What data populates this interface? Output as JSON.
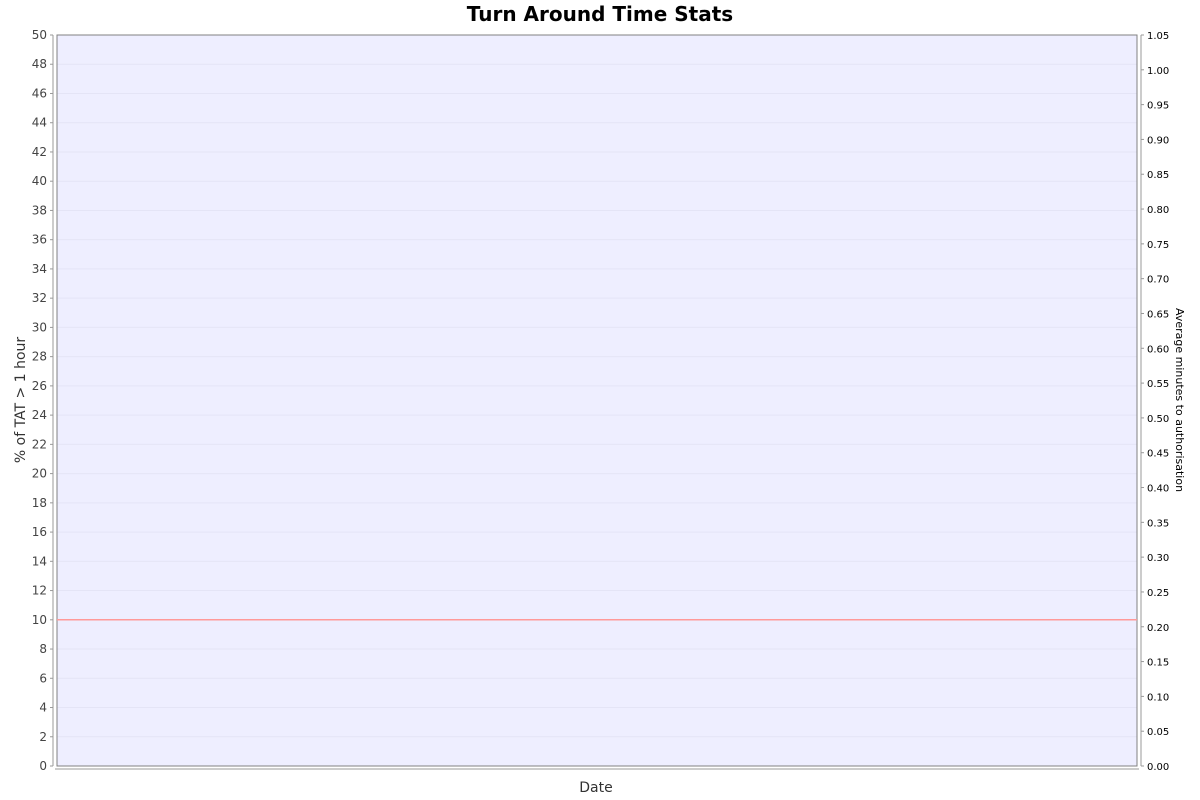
{
  "chart_data": {
    "type": "line",
    "title": "Turn Around Time Stats",
    "xlabel": "Date",
    "ylabel": "% of TAT > 1 hour",
    "y2label": "Average minutes to authorisation",
    "ylim": [
      0,
      50
    ],
    "y2lim": [
      0,
      1.05
    ],
    "yticks": [
      "0",
      "2",
      "4",
      "6",
      "8",
      "10",
      "12",
      "14",
      "16",
      "18",
      "20",
      "22",
      "24",
      "26",
      "28",
      "30",
      "32",
      "34",
      "36",
      "38",
      "40",
      "42",
      "44",
      "46",
      "48",
      "50"
    ],
    "y2ticks": [
      "0.00",
      "0.05",
      "0.10",
      "0.15",
      "0.20",
      "0.25",
      "0.30",
      "0.35",
      "0.40",
      "0.45",
      "0.50",
      "0.55",
      "0.60",
      "0.65",
      "0.70",
      "0.75",
      "0.80",
      "0.85",
      "0.90",
      "0.95",
      "1.00",
      "1.05"
    ],
    "target_line": {
      "axis": "left",
      "value": 10,
      "color": "#ff9999"
    },
    "plot_background": "#eeeeff",
    "grid": true
  }
}
